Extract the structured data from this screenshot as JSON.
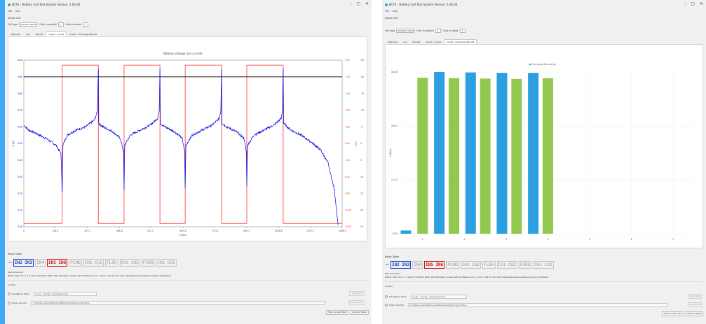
{
  "colors": {
    "accent_strip": "#3fa9f5",
    "app_bg": "#f0f0f0",
    "voltage_line": "#0000dd",
    "current_line": "#ff3030",
    "threshold_line": "#000000",
    "charge_bar": "#2b9fe0",
    "discharge_bar": "#92c84f",
    "relay_blue": "#1a3fc4",
    "relay_red": "#d01010"
  },
  "windows": [
    {
      "title": "BCTS - Battery Cell Test System Version: 1.00.00",
      "controls": {
        "minimize": "–",
        "maximize": "▢",
        "close": "✕"
      },
      "menu": [
        "File",
        "Info"
      ],
      "select_cell_label": "Select Cell",
      "cell_type_label": "Cell type",
      "cell_type_value": "Ultrafine 40Ah4",
      "cells_parallel_label": "Cells in parallel",
      "cells_parallel_value": "1",
      "cells_series_label": "Cells in series",
      "cells_series_value": "1",
      "tabs": [
        "Setpoints",
        "Log",
        "Results",
        "Graph - Cycles",
        "Graph - Discharge Results"
      ],
      "active_tab": 3,
      "relay_label": "Relay State",
      "relay_prefix": "I:0V",
      "relay_boxes": [
        {
          "text": "IN2 IN3",
          "state": "blue"
        },
        {
          "text": "IN4",
          "state": "off"
        },
        {
          "text": "IN5 IN6",
          "state": "red"
        },
        {
          "text": "PCHG",
          "state": "off"
        },
        {
          "text": "CH1 CH2",
          "state": "off"
        },
        {
          "text": "FLSH",
          "state": "off"
        },
        {
          "text": "CH1 CH2",
          "state": "off"
        },
        {
          "text": "FCHG",
          "state": "off"
        },
        {
          "text": "CH1 CH2",
          "state": "off"
        }
      ],
      "test_procedure_label": "Test procedure",
      "test_procedure_text": "Name: Test: 10 in 1 5 cells of 25 Bulk 25Ah with Standard Loader with 25 Balanced on circuit - the 25 vlm mAh data Dependance Measuring Are high/Dist 1",
      "control_label": "Control",
      "predefined_label": "Predefined Tests",
      "predefined_value": "cycle - charge - discharge.lvlm",
      "load_label": "Start Load file",
      "load_path": "C:\\Data\\Local\\DataEngine\\Batteries\\Test\\ScenarioFiles",
      "buttons": {
        "start_test": "Start Test",
        "start_ocv": "Start Cont.",
        "stop_current": "Stop Current Test",
        "stop_all": "Stop All Tests"
      }
    },
    {
      "title": "BCTS - Battery Cell Test System Version: 1.00.00",
      "controls": {
        "minimize": "–",
        "maximize": "▢",
        "close": "✕"
      },
      "menu": [
        "File",
        "Info"
      ],
      "select_cell_label": "Select Cell",
      "cell_type_label": "Cell type",
      "cell_type_value": "Ultrafine 40Ah4",
      "cells_parallel_label": "Cells in parallel",
      "cells_parallel_value": "1",
      "cells_series_label": "Cells in series",
      "cells_series_value": "1",
      "tabs": [
        "Setpoints",
        "Log",
        "Results",
        "Graph - Cycles",
        "Graph - Discharge Results"
      ],
      "active_tab": 4,
      "relay_label": "Relay State",
      "relay_prefix": "I:0V",
      "relay_boxes": [
        {
          "text": "IN2 IN3",
          "state": "blue"
        },
        {
          "text": "IN4",
          "state": "off"
        },
        {
          "text": "IN5 IN6",
          "state": "red"
        },
        {
          "text": "PCHG",
          "state": "off"
        },
        {
          "text": "CH1 CH2",
          "state": "off"
        },
        {
          "text": "FLSH",
          "state": "off"
        },
        {
          "text": "CH1 CH2",
          "state": "off"
        },
        {
          "text": "FCHG",
          "state": "off"
        },
        {
          "text": "CH1 CH2",
          "state": "off"
        }
      ],
      "test_procedure_label": "Test procedure",
      "test_procedure_text": "Name: Test: 10 in 1 5 cells of 25 Bulk 25Ah with Standard Loader with 25 Balanced on circuit - the 25 vlm mAh data Dependance Measuring Are high/Dist 1",
      "control_label": "Control",
      "predefined_label": "Predefined Tests",
      "predefined_value": "cycle - charge - discharge.lvlm",
      "load_label": "Start Load file",
      "load_path": "C:\\Data\\Local\\DataEngine\\Batteries\\Test\\ScenarioFiles",
      "buttons": {
        "start_test": "Start Test",
        "start_ocv": "Start Cont.",
        "stop_current": "Stop Current Test",
        "stop_all": "Stop All Tests"
      }
    }
  ],
  "chart_data": [
    {
      "type": "line",
      "title": "Battery voltage and current",
      "xlabel": "t [min]",
      "ylabel_left": "U [V]",
      "ylabel_right": "I [A]",
      "x_ticks": [
        0.0,
        126.6,
        257.2,
        385.8,
        511.1,
        643.5,
        771.6,
        900.2,
        1028.8,
        1157.1,
        1286.3
      ],
      "y_left_ticks": [
        3.0,
        3.1,
        3.2,
        3.3,
        3.4,
        3.5,
        3.6,
        3.7,
        3.8,
        3.9,
        4.0
      ],
      "y_left_labels": [
        "3.00",
        "3.10",
        "3.20",
        "3.30",
        "3.40",
        "3.50",
        "3.60",
        "3.70",
        "3.80",
        "3.90",
        "4.00"
      ],
      "y_right_labels": [
        "12.00",
        "10.80",
        "9.60",
        "8.40",
        "7.20",
        "6.00",
        "4.80",
        "3.60",
        "2.40",
        "1.20",
        "0.00"
      ],
      "y_far_right_labels": [
        "25",
        "20",
        "15",
        "10",
        "5",
        "0",
        "-5",
        "-10",
        "-15",
        "-20",
        "-25"
      ],
      "threshold": 3.9,
      "xlim": [
        0,
        1286.3
      ],
      "ylim": [
        3.0,
        4.0
      ],
      "current_steps": [
        {
          "from": 0,
          "to": 155,
          "level": "low"
        },
        {
          "from": 155,
          "to": 301,
          "level": "high"
        },
        {
          "from": 301,
          "to": 405,
          "level": "low"
        },
        {
          "from": 405,
          "to": 550,
          "level": "high"
        },
        {
          "from": 550,
          "to": 652,
          "level": "low"
        },
        {
          "from": 652,
          "to": 799,
          "level": "high"
        },
        {
          "from": 799,
          "to": 901,
          "level": "low"
        },
        {
          "from": 901,
          "to": 1048,
          "level": "high"
        },
        {
          "from": 1048,
          "to": 1286.3,
          "level": "low"
        }
      ],
      "current_levels": {
        "low": 3.02,
        "high": 3.97
      },
      "voltage": [
        [
          0,
          3.61
        ],
        [
          20,
          3.58
        ],
        [
          50,
          3.56
        ],
        [
          90,
          3.53
        ],
        [
          130,
          3.49
        ],
        [
          150,
          3.44
        ],
        [
          155,
          3.21
        ],
        [
          158,
          3.49
        ],
        [
          175,
          3.55
        ],
        [
          210,
          3.58
        ],
        [
          250,
          3.6
        ],
        [
          285,
          3.64
        ],
        [
          297,
          3.69
        ],
        [
          301,
          3.95
        ],
        [
          303,
          3.62
        ],
        [
          320,
          3.6
        ],
        [
          360,
          3.57
        ],
        [
          390,
          3.53
        ],
        [
          403,
          3.45
        ],
        [
          405,
          3.22
        ],
        [
          408,
          3.49
        ],
        [
          430,
          3.55
        ],
        [
          470,
          3.58
        ],
        [
          510,
          3.61
        ],
        [
          540,
          3.65
        ],
        [
          547,
          3.69
        ],
        [
          550,
          3.95
        ],
        [
          552,
          3.62
        ],
        [
          570,
          3.6
        ],
        [
          610,
          3.57
        ],
        [
          640,
          3.53
        ],
        [
          650,
          3.45
        ],
        [
          652,
          3.23
        ],
        [
          655,
          3.49
        ],
        [
          680,
          3.55
        ],
        [
          720,
          3.58
        ],
        [
          760,
          3.61
        ],
        [
          790,
          3.65
        ],
        [
          796,
          3.7
        ],
        [
          799,
          3.95
        ],
        [
          801,
          3.62
        ],
        [
          820,
          3.6
        ],
        [
          860,
          3.57
        ],
        [
          890,
          3.53
        ],
        [
          899,
          3.45
        ],
        [
          901,
          3.24
        ],
        [
          904,
          3.49
        ],
        [
          930,
          3.55
        ],
        [
          970,
          3.58
        ],
        [
          1010,
          3.61
        ],
        [
          1040,
          3.65
        ],
        [
          1045,
          3.7
        ],
        [
          1048,
          3.95
        ],
        [
          1050,
          3.62
        ],
        [
          1080,
          3.58
        ],
        [
          1120,
          3.55
        ],
        [
          1160,
          3.51
        ],
        [
          1200,
          3.46
        ],
        [
          1230,
          3.38
        ],
        [
          1255,
          3.22
        ],
        [
          1265,
          3.08
        ],
        [
          1270,
          3.01
        ]
      ]
    },
    {
      "type": "bar",
      "legend": [
        "Charge",
        "Discharge"
      ],
      "legend_position": "top-center",
      "categories": [
        "1",
        "2",
        "3",
        "4",
        "5",
        "6",
        "7"
      ],
      "x_tick_labels": [
        "1",
        "2",
        "3",
        "4",
        "5",
        "6",
        "7"
      ],
      "y_tick_labels": [
        "0.00",
        "13.33",
        "26.67",
        "40.00"
      ],
      "ylabel": "C [Ah]",
      "ylim": [
        0,
        40
      ],
      "bars": [
        {
          "x": 0.6,
          "series": "Charge",
          "value": 0.8
        },
        {
          "x": 1.0,
          "series": "Discharge",
          "value": 38.6
        },
        {
          "x": 1.4,
          "series": "Charge",
          "value": 40.0
        },
        {
          "x": 1.75,
          "series": "Discharge",
          "value": 38.5
        },
        {
          "x": 2.15,
          "series": "Charge",
          "value": 39.9
        },
        {
          "x": 2.5,
          "series": "Discharge",
          "value": 38.4
        },
        {
          "x": 2.9,
          "series": "Charge",
          "value": 39.8
        },
        {
          "x": 3.25,
          "series": "Discharge",
          "value": 38.3
        },
        {
          "x": 3.65,
          "series": "Charge",
          "value": 39.8
        },
        {
          "x": 4.0,
          "series": "Discharge",
          "value": 38.5
        }
      ],
      "xlim": [
        0.5,
        7.5
      ]
    }
  ]
}
